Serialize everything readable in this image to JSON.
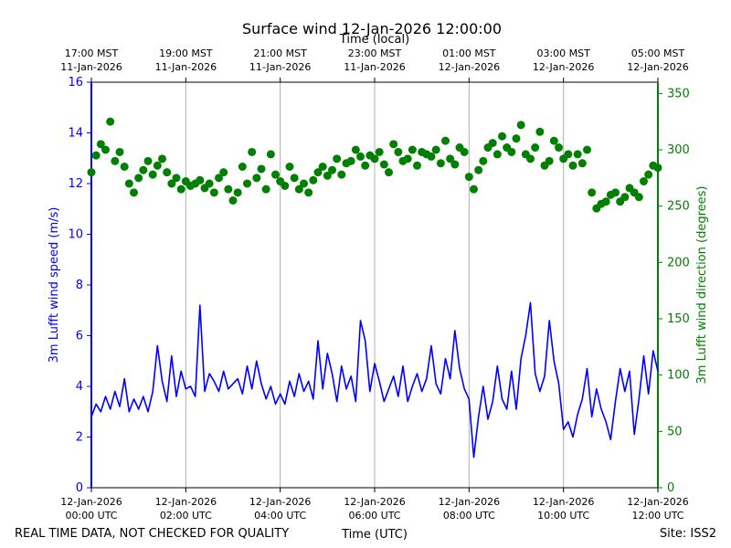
{
  "chart_data": {
    "type": "scatter",
    "title": "Surface wind 12-Jan-2026 12:00:00",
    "top_axis_label": "Time (local)",
    "xlabel": "Time (UTC)",
    "ylabel_left": "3m Lufft wind speed (m/s)",
    "ylabel_right": "3m Lufft wind direction (degrees)",
    "footer_left": "REAL TIME DATA, NOT CHECKED FOR QUALITY",
    "footer_right": "Site: ISS2",
    "x_range_hours": [
      0,
      12
    ],
    "ylim_left": [
      0,
      16
    ],
    "ylim_right": [
      0,
      360
    ],
    "left_ticks": [
      "0",
      "2",
      "4",
      "6",
      "8",
      "10",
      "12",
      "14",
      "16"
    ],
    "right_ticks": [
      "0",
      "50",
      "100",
      "150",
      "200",
      "250",
      "300",
      "350"
    ],
    "bottom_ticks": [
      {
        "hour": 0,
        "line1": "12-Jan-2026",
        "line2": "00:00 UTC"
      },
      {
        "hour": 2,
        "line1": "12-Jan-2026",
        "line2": "02:00 UTC"
      },
      {
        "hour": 4,
        "line1": "12-Jan-2026",
        "line2": "04:00 UTC"
      },
      {
        "hour": 6,
        "line1": "12-Jan-2026",
        "line2": "06:00 UTC"
      },
      {
        "hour": 8,
        "line1": "12-Jan-2026",
        "line2": "08:00 UTC"
      },
      {
        "hour": 10,
        "line1": "12-Jan-2026",
        "line2": "10:00 UTC"
      },
      {
        "hour": 12,
        "line1": "12-Jan-2026",
        "line2": "12:00 UTC"
      }
    ],
    "top_ticks": [
      {
        "hour": 0,
        "line1": "17:00 MST",
        "line2": "11-Jan-2026"
      },
      {
        "hour": 2,
        "line1": "19:00 MST",
        "line2": "11-Jan-2026"
      },
      {
        "hour": 4,
        "line1": "21:00 MST",
        "line2": "11-Jan-2026"
      },
      {
        "hour": 6,
        "line1": "23:00 MST",
        "line2": "11-Jan-2026"
      },
      {
        "hour": 8,
        "line1": "01:00 MST",
        "line2": "12-Jan-2026"
      },
      {
        "hour": 10,
        "line1": "03:00 MST",
        "line2": "12-Jan-2026"
      },
      {
        "hour": 12,
        "line1": "05:00 MST",
        "line2": "12-Jan-2026"
      }
    ],
    "colors": {
      "speed": "#0000ff",
      "direction": "#008000",
      "grid": "#b0b0b0",
      "axis": "#000000"
    },
    "series": [
      {
        "name": "3m Lufft wind speed (m/s)",
        "kind": "line",
        "hours": [
          0.0,
          0.1,
          0.2,
          0.3,
          0.4,
          0.5,
          0.6,
          0.7,
          0.8,
          0.9,
          1.0,
          1.1,
          1.2,
          1.3,
          1.4,
          1.5,
          1.6,
          1.7,
          1.8,
          1.9,
          2.0,
          2.1,
          2.2,
          2.3,
          2.4,
          2.5,
          2.6,
          2.7,
          2.8,
          2.9,
          3.0,
          3.1,
          3.2,
          3.3,
          3.4,
          3.5,
          3.6,
          3.7,
          3.8,
          3.9,
          4.0,
          4.1,
          4.2,
          4.3,
          4.4,
          4.5,
          4.6,
          4.7,
          4.8,
          4.9,
          5.0,
          5.1,
          5.2,
          5.3,
          5.4,
          5.5,
          5.6,
          5.7,
          5.8,
          5.9,
          6.0,
          6.1,
          6.2,
          6.3,
          6.4,
          6.5,
          6.6,
          6.7,
          6.8,
          6.9,
          7.0,
          7.1,
          7.2,
          7.3,
          7.4,
          7.5,
          7.6,
          7.7,
          7.8,
          7.9,
          8.0,
          8.1,
          8.2,
          8.3,
          8.4,
          8.5,
          8.6,
          8.7,
          8.8,
          8.9,
          9.0,
          9.1,
          9.2,
          9.3,
          9.4,
          9.5,
          9.6,
          9.7,
          9.8,
          9.9,
          10.0,
          10.1,
          10.2,
          10.3,
          10.4,
          10.5,
          10.6,
          10.7,
          10.8,
          10.9,
          11.0,
          11.1,
          11.2,
          11.3,
          11.4,
          11.5,
          11.6,
          11.7,
          11.8,
          11.9,
          12.0
        ],
        "values": [
          2.8,
          3.3,
          3.0,
          3.6,
          3.1,
          3.8,
          3.2,
          4.3,
          3.0,
          3.5,
          3.1,
          3.6,
          3.0,
          3.8,
          5.6,
          4.2,
          3.4,
          5.2,
          3.6,
          4.6,
          3.9,
          4.0,
          3.6,
          7.2,
          3.8,
          4.5,
          4.2,
          3.8,
          4.6,
          3.9,
          4.1,
          4.3,
          3.7,
          4.8,
          3.9,
          5.0,
          4.1,
          3.5,
          4.0,
          3.3,
          3.7,
          3.3,
          4.2,
          3.6,
          4.5,
          3.8,
          4.2,
          3.5,
          5.8,
          3.9,
          5.3,
          4.5,
          3.4,
          4.8,
          3.9,
          4.4,
          3.4,
          6.6,
          5.8,
          3.8,
          4.9,
          4.2,
          3.4,
          3.9,
          4.4,
          3.6,
          4.8,
          3.4,
          4.0,
          4.5,
          3.8,
          4.3,
          5.6,
          4.1,
          3.7,
          5.1,
          4.3,
          6.2,
          4.7,
          3.9,
          3.5,
          1.2,
          2.8,
          4.0,
          2.7,
          3.4,
          4.8,
          3.5,
          3.1,
          4.6,
          3.1,
          5.1,
          6.0,
          7.3,
          4.5,
          3.8,
          4.4,
          6.6,
          5.0,
          4.1,
          2.3,
          2.6,
          2.0,
          2.9,
          3.5,
          4.7,
          2.8,
          3.9,
          3.1,
          2.6,
          1.9,
          3.4,
          4.7,
          3.8,
          4.6,
          2.1,
          3.5,
          5.2,
          3.7,
          5.4,
          4.6
        ]
      },
      {
        "name": "3m Lufft wind direction (degrees)",
        "kind": "scatter",
        "hours": [
          0.0,
          0.1,
          0.2,
          0.3,
          0.4,
          0.5,
          0.6,
          0.7,
          0.8,
          0.9,
          1.0,
          1.1,
          1.2,
          1.3,
          1.4,
          1.5,
          1.6,
          1.7,
          1.8,
          1.9,
          2.0,
          2.1,
          2.2,
          2.3,
          2.4,
          2.5,
          2.6,
          2.7,
          2.8,
          2.9,
          3.0,
          3.1,
          3.2,
          3.3,
          3.4,
          3.5,
          3.6,
          3.7,
          3.8,
          3.9,
          4.0,
          4.1,
          4.2,
          4.3,
          4.4,
          4.5,
          4.6,
          4.7,
          4.8,
          4.9,
          5.0,
          5.1,
          5.2,
          5.3,
          5.4,
          5.5,
          5.6,
          5.7,
          5.8,
          5.9,
          6.0,
          6.1,
          6.2,
          6.3,
          6.4,
          6.5,
          6.6,
          6.7,
          6.8,
          6.9,
          7.0,
          7.1,
          7.2,
          7.3,
          7.4,
          7.5,
          7.6,
          7.7,
          7.8,
          7.9,
          8.0,
          8.1,
          8.2,
          8.3,
          8.4,
          8.5,
          8.6,
          8.7,
          8.8,
          8.9,
          9.0,
          9.1,
          9.2,
          9.3,
          9.4,
          9.5,
          9.6,
          9.7,
          9.8,
          9.9,
          10.0,
          10.1,
          10.2,
          10.3,
          10.4,
          10.5,
          10.6,
          10.7,
          10.8,
          10.9,
          11.0,
          11.1,
          11.2,
          11.3,
          11.4,
          11.5,
          11.6,
          11.7,
          11.8,
          11.9,
          12.0
        ],
        "values": [
          280,
          295,
          305,
          300,
          325,
          290,
          298,
          285,
          270,
          262,
          275,
          282,
          290,
          278,
          286,
          292,
          280,
          270,
          275,
          265,
          272,
          268,
          270,
          273,
          266,
          270,
          262,
          275,
          280,
          265,
          255,
          262,
          285,
          270,
          298,
          275,
          283,
          265,
          296,
          278,
          272,
          268,
          285,
          275,
          265,
          270,
          262,
          273,
          280,
          285,
          277,
          282,
          292,
          278,
          288,
          290,
          300,
          294,
          286,
          295,
          292,
          298,
          287,
          280,
          305,
          298,
          290,
          292,
          300,
          286,
          298,
          296,
          294,
          300,
          288,
          308,
          292,
          287,
          302,
          298,
          276,
          265,
          282,
          290,
          302,
          306,
          296,
          312,
          302,
          298,
          310,
          322,
          296,
          292,
          302,
          316,
          286,
          290,
          308,
          302,
          292,
          296,
          286,
          296,
          288,
          300,
          262,
          248,
          252,
          254,
          260,
          262,
          254,
          258,
          266,
          262,
          258,
          272,
          278,
          286,
          284
        ]
      }
    ]
  }
}
